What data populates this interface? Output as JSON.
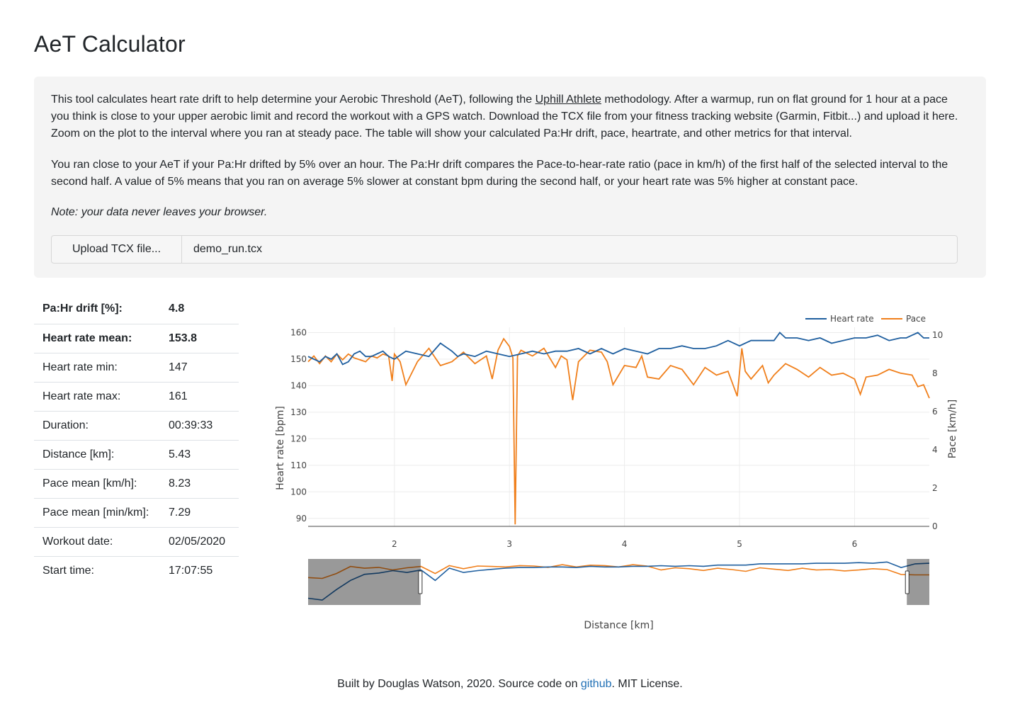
{
  "page": {
    "title": "AeT Calculator"
  },
  "intro": {
    "p1_before": "This tool calculates heart rate drift to help determine your Aerobic Threshold (AeT), following the ",
    "p1_link": "Uphill Athlete",
    "p1_after": " methodology. After a warmup, run on flat ground for 1 hour at a pace you think is close to your upper aerobic limit and record the workout with a GPS watch. Download the TCX file from your fitness tracking website (Garmin, Fitbit...) and upload it here. Zoom on the plot to the interval where you ran at steady pace. The table will show your calculated Pa:Hr drift, pace, heartrate, and other metrics for that interval.",
    "p2": "You ran close to your AeT if your Pa:Hr drifted by 5% over an hour. The Pa:Hr drift compares the Pace-to-hear-rate ratio (pace in km/h) of the first half of the selected interval to the second half. A value of 5% means that you ran on average 5% slower at constant bpm during the second half, or your heart rate was 5% higher at constant pace.",
    "note": "Note: your data never leaves your browser."
  },
  "upload": {
    "button_label": "Upload TCX file...",
    "filename": "demo_run.tcx"
  },
  "stats": [
    {
      "label": "Pa:Hr drift [%]:",
      "value": "4.8"
    },
    {
      "label": "Heart rate mean:",
      "value": "153.8"
    },
    {
      "label": "Heart rate min:",
      "value": "147"
    },
    {
      "label": "Heart rate max:",
      "value": "161"
    },
    {
      "label": "Duration:",
      "value": "00:39:33"
    },
    {
      "label": "Distance [km]:",
      "value": "5.43"
    },
    {
      "label": "Pace mean [km/h]:",
      "value": "8.23"
    },
    {
      "label": "Pace mean [min/km]:",
      "value": "7.29"
    },
    {
      "label": "Workout date:",
      "value": "02/05/2020"
    },
    {
      "label": "Start time:",
      "value": "17:07:55"
    }
  ],
  "footer": {
    "before": "Built by Douglas Watson, 2020. Source code on ",
    "link": "github",
    "after": ". MIT License."
  },
  "chart_data": {
    "type": "line",
    "xlabel": "Distance [km]",
    "ylabel": "Heart rate [bpm]",
    "y2label": "Pace [km/h]",
    "xlim": [
      1.25,
      6.65
    ],
    "ylim": [
      87,
      162
    ],
    "y2lim": [
      0,
      10.4
    ],
    "xticks": [
      2,
      3,
      4,
      5,
      6
    ],
    "yticks": [
      90,
      100,
      110,
      120,
      130,
      140,
      150,
      160
    ],
    "y2ticks": [
      0,
      2,
      4,
      6,
      8,
      10
    ],
    "legend_position": "top-right",
    "grid": true,
    "colors": {
      "heart_rate": "#1f5f9f",
      "pace": "#f07f1b"
    },
    "series": [
      {
        "name": "Heart rate",
        "axis": "y",
        "x": [
          1.25,
          1.3,
          1.35,
          1.4,
          1.45,
          1.5,
          1.55,
          1.6,
          1.65,
          1.7,
          1.75,
          1.8,
          1.85,
          1.9,
          1.95,
          2.0,
          2.1,
          2.2,
          2.3,
          2.4,
          2.5,
          2.55,
          2.6,
          2.7,
          2.8,
          2.9,
          3.0,
          3.1,
          3.2,
          3.3,
          3.4,
          3.5,
          3.6,
          3.7,
          3.8,
          3.9,
          4.0,
          4.1,
          4.2,
          4.3,
          4.4,
          4.5,
          4.6,
          4.7,
          4.8,
          4.9,
          5.0,
          5.1,
          5.2,
          5.3,
          5.35,
          5.4,
          5.5,
          5.6,
          5.7,
          5.8,
          5.9,
          6.0,
          6.1,
          6.2,
          6.3,
          6.4,
          6.45,
          6.5,
          6.55,
          6.6,
          6.65
        ],
        "values": [
          151,
          150,
          149,
          151,
          150,
          152,
          148,
          149,
          152,
          153,
          151,
          151,
          152,
          153,
          151,
          150,
          153,
          152,
          151,
          156,
          153,
          151,
          152,
          151,
          153,
          152,
          151,
          152,
          153,
          152,
          153,
          153,
          154,
          152,
          154,
          152,
          154,
          153,
          152,
          154,
          154,
          155,
          154,
          154,
          155,
          157,
          155,
          157,
          157,
          157,
          160,
          158,
          158,
          157,
          158,
          156,
          157,
          158,
          158,
          159,
          157,
          158,
          158,
          159,
          160,
          158,
          158
        ]
      },
      {
        "name": "Pace",
        "axis": "y2",
        "x": [
          1.25,
          1.3,
          1.35,
          1.4,
          1.45,
          1.5,
          1.55,
          1.6,
          1.65,
          1.7,
          1.75,
          1.8,
          1.85,
          1.9,
          1.95,
          1.98,
          2.0,
          2.05,
          2.1,
          2.2,
          2.3,
          2.4,
          2.5,
          2.6,
          2.7,
          2.8,
          2.85,
          2.9,
          2.95,
          3.0,
          3.03,
          3.05,
          3.07,
          3.1,
          3.2,
          3.3,
          3.4,
          3.45,
          3.5,
          3.55,
          3.6,
          3.7,
          3.8,
          3.85,
          3.9,
          4.0,
          4.1,
          4.15,
          4.2,
          4.3,
          4.4,
          4.5,
          4.6,
          4.7,
          4.8,
          4.9,
          4.98,
          5.02,
          5.05,
          5.1,
          5.2,
          5.25,
          5.3,
          5.4,
          5.5,
          5.6,
          5.7,
          5.8,
          5.9,
          6.0,
          6.05,
          6.1,
          6.2,
          6.3,
          6.4,
          6.5,
          6.55,
          6.6,
          6.65
        ],
        "values": [
          8.6,
          8.9,
          8.5,
          8.9,
          8.6,
          9.0,
          8.7,
          9.0,
          8.8,
          8.7,
          8.6,
          8.9,
          8.8,
          9.0,
          8.9,
          7.6,
          9.0,
          8.6,
          7.4,
          8.6,
          9.3,
          8.4,
          8.6,
          9.1,
          8.5,
          8.9,
          7.7,
          9.2,
          9.8,
          9.4,
          8.8,
          0.1,
          8.9,
          9.2,
          8.9,
          9.3,
          8.3,
          8.9,
          8.7,
          6.6,
          8.6,
          9.2,
          9.1,
          8.6,
          7.4,
          8.4,
          8.3,
          8.9,
          7.8,
          7.7,
          8.4,
          8.2,
          7.4,
          8.3,
          7.9,
          8.1,
          6.8,
          9.3,
          8.1,
          7.7,
          8.4,
          7.5,
          7.9,
          8.5,
          8.2,
          7.8,
          8.3,
          7.9,
          8.0,
          7.7,
          6.9,
          7.8,
          7.9,
          8.2,
          8.0,
          7.9,
          7.3,
          7.4,
          6.7
        ]
      }
    ],
    "rangeslider": {
      "xlim": [
        0,
        6.9
      ],
      "selected": [
        1.25,
        6.65
      ],
      "hr_values": [
        101,
        98,
        115,
        130,
        140,
        142,
        146,
        143,
        147,
        130,
        150,
        143,
        146,
        148,
        150,
        151,
        151,
        152,
        152,
        151,
        153,
        152,
        152,
        153,
        153,
        154,
        153,
        154,
        153,
        155,
        155,
        155,
        157,
        157,
        157,
        157,
        158,
        158,
        158,
        159,
        158,
        160,
        151,
        157,
        158
      ],
      "pace_values": [
        6.2,
        6.0,
        7.1,
        8.7,
        8.3,
        8.5,
        7.9,
        8.4,
        8.7,
        7.1,
        8.9,
        8.2,
        8.8,
        8.7,
        8.6,
        8.9,
        8.8,
        8.5,
        9.1,
        8.6,
        9.0,
        8.9,
        8.6,
        9.1,
        8.8,
        7.9,
        8.4,
        8.2,
        7.8,
        8.3,
        8.0,
        7.6,
        8.4,
        8.1,
        7.8,
        8.3,
        7.9,
        8.0,
        7.7,
        7.9,
        8.2,
        8.0,
        6.9,
        6.8,
        6.8
      ]
    }
  }
}
